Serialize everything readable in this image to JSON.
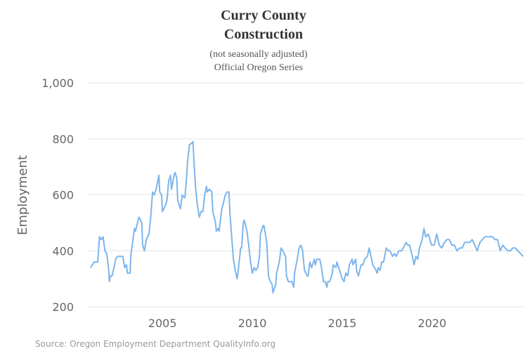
{
  "chart_data": {
    "type": "line",
    "title": [
      "Curry County",
      "Construction"
    ],
    "subtitle": [
      "(not seasonally adjusted)",
      "Official Oregon Series"
    ],
    "ylabel": "Employment",
    "source": "Source: Oregon Employment Department QualityInfo.org",
    "color": "#7cb5ec",
    "grid": true,
    "xlim": [
      2000.85,
      2025.2
    ],
    "xticks": [
      2005,
      2010,
      2015,
      2020
    ],
    "ylim": [
      200,
      1000
    ],
    "yticks": [
      200,
      400,
      600,
      800,
      {
        "value": 1000,
        "label": "1,000"
      }
    ],
    "x": [
      2001.0,
      2001.2,
      2001.4,
      2001.5,
      2001.6,
      2001.7,
      2001.8,
      2001.9,
      2002.0,
      2002.05,
      2002.1,
      2002.2,
      2002.3,
      2002.4,
      2002.5,
      2002.8,
      2002.9,
      2003.0,
      2003.05,
      2003.2,
      2003.25,
      2003.45,
      2003.5,
      2003.65,
      2003.7,
      2003.85,
      2003.9,
      2004.0,
      2004.1,
      2004.25,
      2004.35,
      2004.45,
      2004.55,
      2004.65,
      2004.8,
      2004.85,
      2004.95,
      2005.0,
      2005.15,
      2005.25,
      2005.35,
      2005.45,
      2005.5,
      2005.65,
      2005.7,
      2005.8,
      2005.85,
      2005.95,
      2006.0,
      2006.1,
      2006.2,
      2006.25,
      2006.35,
      2006.4,
      2006.5,
      2006.55,
      2006.7,
      2006.75,
      2006.85,
      2006.95,
      2007.05,
      2007.15,
      2007.25,
      2007.35,
      2007.45,
      2007.5,
      2007.6,
      2007.75,
      2007.8,
      2007.95,
      2008.0,
      2008.1,
      2008.15,
      2008.3,
      2008.35,
      2008.5,
      2008.6,
      2008.7,
      2008.75,
      2008.85,
      2008.95,
      2009.05,
      2009.15,
      2009.2,
      2009.35,
      2009.4,
      2009.5,
      2009.55,
      2009.7,
      2009.8,
      2009.9,
      2010.0,
      2010.1,
      2010.2,
      2010.3,
      2010.4,
      2010.45,
      2010.6,
      2010.65,
      2010.8,
      2010.9,
      2011.0,
      2011.1,
      2011.15,
      2011.3,
      2011.35,
      2011.5,
      2011.6,
      2011.7,
      2011.85,
      2011.9,
      2012.0,
      2012.1,
      2012.2,
      2012.3,
      2012.35,
      2012.5,
      2012.6,
      2012.7,
      2012.8,
      2012.9,
      2013.05,
      2013.1,
      2013.2,
      2013.3,
      2013.45,
      2013.5,
      2013.6,
      2013.75,
      2013.85,
      2013.95,
      2014.05,
      2014.15,
      2014.2,
      2014.3,
      2014.45,
      2014.5,
      2014.65,
      2014.7,
      2014.8,
      2014.9,
      2015.0,
      2015.1,
      2015.2,
      2015.3,
      2015.4,
      2015.55,
      2015.6,
      2015.75,
      2015.8,
      2015.9,
      2016.05,
      2016.15,
      2016.25,
      2016.4,
      2016.5,
      2016.6,
      2016.7,
      2016.8,
      2016.95,
      2017.0,
      2017.1,
      2017.2,
      2017.3,
      2017.45,
      2017.55,
      2017.65,
      2017.8,
      2017.9,
      2018.0,
      2018.15,
      2018.3,
      2018.4,
      2018.55,
      2018.65,
      2018.75,
      2018.9,
      2019.0,
      2019.1,
      2019.2,
      2019.3,
      2019.45,
      2019.55,
      2019.64,
      2019.79,
      2019.88,
      2019.97,
      2020.11,
      2020.26,
      2020.4,
      2020.54,
      2020.68,
      2020.82,
      2020.96,
      2021.1,
      2021.24,
      2021.38,
      2021.53,
      2021.67,
      2021.81,
      2022.09,
      2022.23,
      2022.37,
      2022.51,
      2022.66,
      2022.8,
      2022.94,
      2023.36,
      2023.5,
      2023.64,
      2023.79,
      2023.93,
      2024.07,
      2024.21,
      2024.35,
      2024.49,
      2024.63,
      2024.77,
      2024.92,
      2025.06
    ],
    "values": [
      340,
      360,
      360,
      450,
      440,
      450,
      400,
      390,
      340,
      290,
      310,
      310,
      340,
      370,
      380,
      380,
      340,
      350,
      320,
      320,
      390,
      480,
      470,
      510,
      520,
      500,
      420,
      400,
      440,
      460,
      520,
      610,
      600,
      620,
      670,
      610,
      600,
      540,
      560,
      580,
      650,
      670,
      620,
      670,
      680,
      660,
      580,
      560,
      550,
      600,
      590,
      590,
      670,
      720,
      780,
      780,
      790,
      720,
      620,
      560,
      520,
      540,
      540,
      600,
      630,
      610,
      620,
      610,
      540,
      500,
      470,
      480,
      470,
      550,
      560,
      600,
      610,
      610,
      540,
      450,
      370,
      330,
      300,
      320,
      410,
      410,
      500,
      510,
      470,
      420,
      360,
      320,
      340,
      330,
      340,
      380,
      460,
      490,
      490,
      430,
      310,
      290,
      280,
      250,
      280,
      320,
      360,
      410,
      400,
      380,
      310,
      290,
      290,
      290,
      270,
      320,
      370,
      410,
      420,
      400,
      330,
      310,
      310,
      360,
      340,
      370,
      350,
      370,
      370,
      340,
      290,
      290,
      270,
      290,
      290,
      320,
      350,
      340,
      360,
      340,
      320,
      300,
      290,
      320,
      310,
      350,
      370,
      350,
      370,
      330,
      310,
      350,
      350,
      370,
      380,
      410,
      380,
      350,
      340,
      320,
      340,
      330,
      360,
      360,
      410,
      400,
      400,
      380,
      390,
      380,
      400,
      400,
      410,
      430,
      420,
      420,
      380,
      350,
      380,
      370,
      410,
      440,
      480,
      450,
      460,
      440,
      420,
      420,
      460,
      420,
      410,
      430,
      440,
      440,
      420,
      420,
      400,
      410,
      410,
      430,
      430,
      440,
      420,
      400,
      430,
      440,
      450,
      450,
      440,
      440,
      400,
      420,
      410,
      400,
      400,
      410,
      410,
      400,
      390,
      380
    ]
  }
}
